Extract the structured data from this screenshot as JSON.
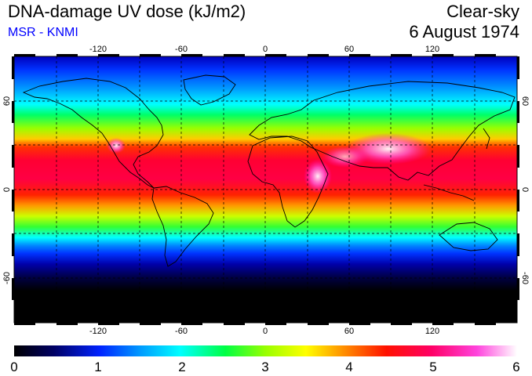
{
  "header": {
    "title": "DNA-damage UV dose (kJ/m2)",
    "source": "MSR - KNMI",
    "condition": "Clear-sky",
    "date": "6 August 1974"
  },
  "map": {
    "lon_ticks": [
      "-120",
      "-60",
      "0",
      "60",
      "120"
    ],
    "lat_ticks": [
      "60",
      "0",
      "-60"
    ],
    "lon_values": [
      -120,
      -60,
      0,
      60,
      120
    ],
    "lat_values": [
      60,
      0,
      -60
    ],
    "gridline_lons": [
      -150,
      -120,
      -90,
      -60,
      -30,
      0,
      30,
      60,
      90,
      120,
      150
    ],
    "gridline_lats": [
      60,
      30,
      0,
      -30,
      -60
    ],
    "extent": {
      "lon": [
        -180,
        180
      ],
      "lat": [
        -90,
        90
      ]
    }
  },
  "colorbar": {
    "labels": [
      "0",
      "1",
      "2",
      "3",
      "4",
      "5",
      "6"
    ],
    "range": [
      0,
      6
    ],
    "colors": [
      "#000000",
      "#0000cc",
      "#0066ff",
      "#00ffff",
      "#00ff66",
      "#66ff00",
      "#ffff00",
      "#ff9900",
      "#ff2200",
      "#ff0066",
      "#ff00cc",
      "#ffbbff",
      "#ffffff"
    ]
  }
}
